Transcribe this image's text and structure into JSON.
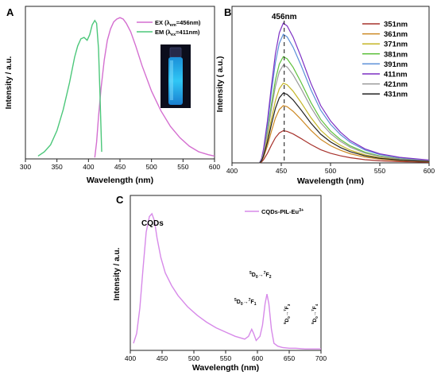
{
  "colors": {
    "ex_pink": "#d46fd0",
    "em_green": "#4cc77a",
    "vial_glow": "#27b8f0",
    "cqds_violet": "#d78ae9"
  },
  "chart_data": [
    {
      "type": "line",
      "panel_letter": "A",
      "xlabel": "Wavelength (nm)",
      "ylabel": "Intensity / a.u.",
      "xlim": [
        300,
        600
      ],
      "xticks": [
        300,
        350,
        400,
        450,
        500,
        550,
        600
      ],
      "ylim": [
        0,
        1.08
      ],
      "legend": {
        "position": "top-right"
      },
      "inset": "glowing-vial-photo",
      "series": [
        {
          "name": "EX (λem=456nm)",
          "label_main": "EX (λ",
          "label_sub": "em",
          "label_tail": "=456nm)",
          "color": "#d46fd0",
          "points": [
            [
              410,
              0.01
            ],
            [
              413,
              0.12
            ],
            [
              416,
              0.3
            ],
            [
              420,
              0.5
            ],
            [
              425,
              0.7
            ],
            [
              430,
              0.84
            ],
            [
              435,
              0.92
            ],
            [
              440,
              0.97
            ],
            [
              445,
              0.99
            ],
            [
              450,
              1.0
            ],
            [
              455,
              0.99
            ],
            [
              460,
              0.96
            ],
            [
              467,
              0.9
            ],
            [
              475,
              0.8
            ],
            [
              485,
              0.66
            ],
            [
              500,
              0.48
            ],
            [
              515,
              0.34
            ],
            [
              530,
              0.23
            ],
            [
              545,
              0.15
            ],
            [
              560,
              0.09
            ],
            [
              575,
              0.05
            ],
            [
              590,
              0.03
            ],
            [
              600,
              0.02
            ]
          ]
        },
        {
          "name": "EM (λex=411nm)",
          "label_main": "EM (λ",
          "label_sub": "ex",
          "label_tail": "=411nm)",
          "color": "#4cc77a",
          "points": [
            [
              320,
              0.02
            ],
            [
              330,
              0.05
            ],
            [
              340,
              0.1
            ],
            [
              350,
              0.2
            ],
            [
              360,
              0.35
            ],
            [
              370,
              0.54
            ],
            [
              378,
              0.72
            ],
            [
              383,
              0.8
            ],
            [
              388,
              0.85
            ],
            [
              393,
              0.86
            ],
            [
              398,
              0.84
            ],
            [
              402,
              0.88
            ],
            [
              406,
              0.95
            ],
            [
              410,
              0.98
            ],
            [
              413,
              0.96
            ],
            [
              416,
              0.78
            ],
            [
              418,
              0.5
            ],
            [
              420,
              0.2
            ],
            [
              421,
              0.05
            ]
          ]
        }
      ]
    },
    {
      "type": "line",
      "panel_letter": "B",
      "xlabel": "Wavelength (nm)",
      "ylabel": "Intensity ( a.u.)",
      "xlim": [
        400,
        600
      ],
      "xticks": [
        400,
        450,
        500,
        550,
        600
      ],
      "ylim": [
        0,
        1.12
      ],
      "legend": {
        "position": "top-right"
      },
      "annotation": {
        "text": "456nm",
        "x": 453,
        "style": "dashed vertical line"
      },
      "series": [
        {
          "name": "351nm",
          "color": "#a7322c",
          "peak": 0.23
        },
        {
          "name": "361nm",
          "color": "#cd8a25",
          "peak": 0.41
        },
        {
          "name": "371nm",
          "color": "#c4b526",
          "peak": 0.57
        },
        {
          "name": "381nm",
          "color": "#5ec13d",
          "peak": 0.76
        },
        {
          "name": "391nm",
          "color": "#5a8fd8",
          "peak": 0.92
        },
        {
          "name": "411nm",
          "color": "#7c2fc4",
          "peak": 1.0
        },
        {
          "name": "421nm",
          "color": "#9a9a9a",
          "peak": 0.7
        },
        {
          "name": "431nm",
          "color": "#222222",
          "peak": 0.5
        }
      ],
      "shape": [
        [
          428,
          0.0
        ],
        [
          430,
          0.03
        ],
        [
          432,
          0.1
        ],
        [
          436,
          0.3
        ],
        [
          440,
          0.55
        ],
        [
          444,
          0.78
        ],
        [
          448,
          0.93
        ],
        [
          452,
          1.0
        ],
        [
          456,
          0.98
        ],
        [
          462,
          0.9
        ],
        [
          470,
          0.76
        ],
        [
          480,
          0.57
        ],
        [
          490,
          0.41
        ],
        [
          500,
          0.3
        ],
        [
          510,
          0.22
        ],
        [
          520,
          0.16
        ],
        [
          535,
          0.1
        ],
        [
          550,
          0.065
        ],
        [
          570,
          0.04
        ],
        [
          585,
          0.03
        ],
        [
          600,
          0.02
        ]
      ]
    },
    {
      "type": "line",
      "panel_letter": "C",
      "xlabel": "Wavelength (nm)",
      "ylabel": "Intensity / a.u.",
      "xlim": [
        400,
        700
      ],
      "xticks": [
        400,
        450,
        500,
        550,
        600,
        650,
        700
      ],
      "ylim": [
        0,
        1.1
      ],
      "legend": {
        "position": "top-right"
      },
      "series": [
        {
          "name": "CQDs-PIL-Eu3+",
          "label_main": "CQDs-PIL-Eu",
          "label_sup": "3+",
          "color": "#d78ae9",
          "points": [
            [
              405,
              0.05
            ],
            [
              410,
              0.12
            ],
            [
              415,
              0.3
            ],
            [
              420,
              0.58
            ],
            [
              425,
              0.84
            ],
            [
              430,
              0.95
            ],
            [
              434,
              0.97
            ],
            [
              438,
              0.92
            ],
            [
              442,
              0.8
            ],
            [
              448,
              0.66
            ],
            [
              455,
              0.55
            ],
            [
              465,
              0.46
            ],
            [
              475,
              0.39
            ],
            [
              490,
              0.31
            ],
            [
              505,
              0.25
            ],
            [
              520,
              0.2
            ],
            [
              535,
              0.16
            ],
            [
              550,
              0.13
            ],
            [
              565,
              0.1
            ],
            [
              580,
              0.08
            ],
            [
              586,
              0.1
            ],
            [
              591,
              0.15
            ],
            [
              594,
              0.12
            ],
            [
              598,
              0.07
            ],
            [
              604,
              0.1
            ],
            [
              608,
              0.18
            ],
            [
              612,
              0.33
            ],
            [
              615,
              0.4
            ],
            [
              618,
              0.33
            ],
            [
              622,
              0.15
            ],
            [
              626,
              0.05
            ],
            [
              632,
              0.03
            ],
            [
              640,
              0.02
            ],
            [
              650,
              0.015
            ],
            [
              660,
              0.015
            ],
            [
              675,
              0.01
            ],
            [
              690,
              0.01
            ],
            [
              700,
              0.01
            ]
          ]
        }
      ],
      "annotations": [
        {
          "text": "CQDs"
        },
        {
          "main": "D",
          "sup": "5",
          "sub": "0",
          "arrow": "→",
          "tail": "F",
          "tail_sup": "7",
          "tail_sub": "1"
        },
        {
          "main": "D",
          "sup": "5",
          "sub": "0",
          "arrow": "→",
          "tail": "F",
          "tail_sup": "7",
          "tail_sub": "2"
        },
        {
          "main": "D",
          "sup": "5",
          "sub": "0",
          "arrow": "→",
          "tail": "F",
          "tail_sup": "7",
          "tail_sub": "3"
        },
        {
          "main": "D",
          "sup": "5",
          "sub": "0",
          "arrow": "→",
          "tail": "F",
          "tail_sup": "7",
          "tail_sub": "4"
        }
      ]
    }
  ]
}
